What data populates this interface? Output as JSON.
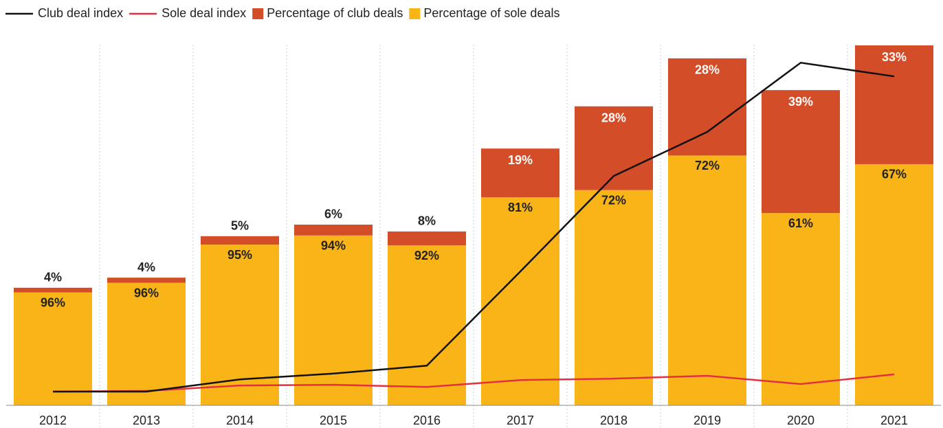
{
  "chart_data": {
    "type": "bar",
    "categories": [
      "2012",
      "2013",
      "2014",
      "2015",
      "2016",
      "2017",
      "2018",
      "2019",
      "2020",
      "2021"
    ],
    "ylim": [
      0,
      100
    ],
    "totals": [
      32.6,
      35.4,
      46.9,
      50.1,
      48.2,
      71.2,
      82.9,
      96.2,
      87.4,
      99.8
    ],
    "series": [
      {
        "name": "Club deal index",
        "type": "line",
        "color": "#111111",
        "values": [
          3.8,
          3.8,
          7.2,
          8.8,
          11.0,
          37.1,
          63.6,
          75.8,
          95.0,
          91.2
        ]
      },
      {
        "name": "Sole deal index",
        "type": "line",
        "color": "#e2303f",
        "values": [
          3.8,
          4.0,
          5.5,
          5.7,
          5.1,
          7.0,
          7.4,
          8.2,
          5.9,
          8.6
        ]
      },
      {
        "name": "Percentage of club deals",
        "type": "bar",
        "color": "#d24d28",
        "values": [
          4,
          4,
          5,
          6,
          8,
          19,
          28,
          28,
          39,
          33
        ],
        "value_labels": [
          "4%",
          "4%",
          "5%",
          "6%",
          "8%",
          "19%",
          "28%",
          "28%",
          "39%",
          "33%"
        ]
      },
      {
        "name": "Percentage of sole deals",
        "type": "bar",
        "color": "#f9b417",
        "values": [
          96,
          96,
          95,
          94,
          92,
          81,
          72,
          72,
          61,
          67
        ],
        "value_labels": [
          "96%",
          "96%",
          "95%",
          "94%",
          "92%",
          "81%",
          "72%",
          "72%",
          "61%",
          "67%"
        ]
      }
    ]
  }
}
